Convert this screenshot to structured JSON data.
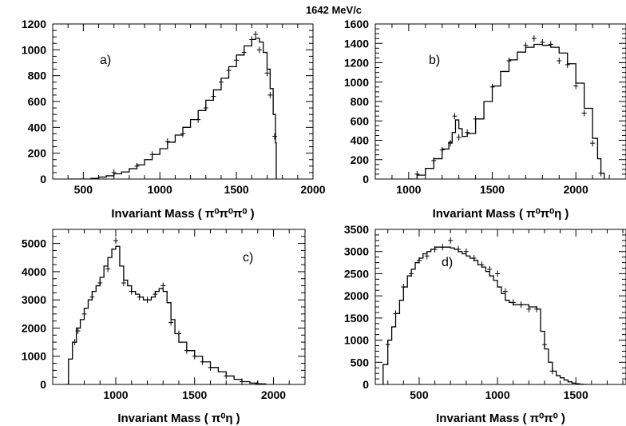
{
  "figure_title": "1642 MeV/c",
  "chart_data": [
    {
      "type": "area",
      "panel_label": "a)",
      "xlabel": "Invariant Mass ( π⁰π⁰π⁰ )",
      "ylabel": "",
      "xlim": [
        300,
        2000
      ],
      "ylim": [
        0,
        1200
      ],
      "xticks": [
        500,
        1000,
        1500,
        2000
      ],
      "yticks": [
        0,
        200,
        400,
        600,
        800,
        1000,
        1200
      ],
      "series": [
        {
          "style": "histogram",
          "x": [
            400,
            500,
            550,
            600,
            650,
            700,
            750,
            800,
            850,
            900,
            950,
            1000,
            1050,
            1100,
            1150,
            1200,
            1250,
            1300,
            1350,
            1400,
            1450,
            1500,
            1550,
            1600,
            1625,
            1650,
            1675,
            1700,
            1720,
            1740,
            1755,
            1760
          ],
          "values": [
            0,
            0,
            5,
            15,
            25,
            40,
            55,
            80,
            110,
            150,
            190,
            235,
            285,
            340,
            400,
            460,
            530,
            610,
            690,
            780,
            870,
            960,
            1030,
            1080,
            1090,
            1060,
            980,
            850,
            700,
            500,
            280,
            0
          ]
        },
        {
          "style": "points",
          "x": [
            700,
            850,
            950,
            1050,
            1150,
            1250,
            1300,
            1350,
            1400,
            1450,
            1500,
            1550,
            1600,
            1625,
            1650,
            1700,
            1720,
            1750
          ],
          "values": [
            50,
            100,
            190,
            290,
            350,
            460,
            550,
            640,
            750,
            840,
            920,
            980,
            1080,
            1120,
            1000,
            820,
            650,
            330
          ]
        }
      ]
    },
    {
      "type": "area",
      "panel_label": "b)",
      "xlabel": "Invariant Mass ( π⁰π⁰η )",
      "ylabel": "",
      "xlim": [
        800,
        2300
      ],
      "ylim": [
        0,
        1600
      ],
      "xticks": [
        1000,
        1500,
        2000
      ],
      "yticks": [
        0,
        200,
        400,
        600,
        800,
        1000,
        1200,
        1400,
        1600
      ],
      "series": [
        {
          "style": "histogram",
          "x": [
            1000,
            1050,
            1100,
            1150,
            1200,
            1240,
            1260,
            1280,
            1300,
            1320,
            1350,
            1400,
            1450,
            1500,
            1550,
            1600,
            1650,
            1700,
            1750,
            1800,
            1850,
            1900,
            1950,
            2000,
            2050,
            2100,
            2130,
            2150,
            2170
          ],
          "values": [
            0,
            40,
            110,
            210,
            310,
            380,
            480,
            610,
            520,
            440,
            470,
            620,
            800,
            960,
            1110,
            1230,
            1310,
            1360,
            1390,
            1380,
            1360,
            1300,
            1190,
            990,
            730,
            420,
            210,
            60,
            0
          ]
        },
        {
          "style": "points",
          "x": [
            1050,
            1150,
            1200,
            1250,
            1275,
            1300,
            1350,
            1400,
            1500,
            1600,
            1700,
            1750,
            1800,
            1850,
            1900,
            1950,
            2000,
            2050,
            2100,
            2150
          ],
          "values": [
            50,
            190,
            300,
            370,
            650,
            430,
            480,
            620,
            950,
            1220,
            1380,
            1450,
            1410,
            1390,
            1220,
            1180,
            960,
            680,
            370,
            60
          ]
        }
      ]
    },
    {
      "type": "area",
      "panel_label": "c)",
      "xlabel": "Invariant Mass ( π⁰η )",
      "ylabel": "",
      "xlim": [
        600,
        2200
      ],
      "ylim": [
        0,
        5500
      ],
      "xticks": [
        1000,
        1500,
        2000
      ],
      "yticks": [
        0,
        1000,
        2000,
        3000,
        4000,
        5000
      ],
      "series": [
        {
          "style": "histogram",
          "x": [
            680,
            700,
            725,
            750,
            775,
            800,
            825,
            850,
            875,
            900,
            925,
            950,
            975,
            1000,
            1025,
            1050,
            1075,
            1100,
            1125,
            1150,
            1175,
            1200,
            1225,
            1250,
            1275,
            1300,
            1325,
            1350,
            1375,
            1400,
            1450,
            1500,
            1550,
            1600,
            1650,
            1700,
            1750,
            1800,
            1850,
            1900,
            1950
          ],
          "values": [
            0,
            900,
            1500,
            2000,
            2300,
            2700,
            3000,
            3300,
            3500,
            3800,
            4200,
            4500,
            4800,
            4900,
            4200,
            3700,
            3500,
            3300,
            3200,
            3100,
            3000,
            3000,
            3100,
            3300,
            3400,
            3300,
            2900,
            2300,
            1800,
            1500,
            1200,
            1000,
            800,
            600,
            450,
            300,
            180,
            100,
            50,
            20,
            0
          ]
        },
        {
          "style": "points",
          "x": [
            740,
            760,
            800,
            850,
            900,
            950,
            1000,
            1050,
            1100,
            1150,
            1200,
            1250,
            1300,
            1350,
            1400,
            1450,
            1500,
            1550,
            1600,
            1700,
            1800,
            1900
          ],
          "values": [
            1500,
            1900,
            2500,
            3100,
            3600,
            4100,
            5100,
            3600,
            3300,
            3100,
            3000,
            3200,
            3500,
            2200,
            1800,
            1200,
            1000,
            800,
            600,
            300,
            100,
            20
          ]
        }
      ]
    },
    {
      "type": "area",
      "panel_label": "d)",
      "xlabel": "Invariant Mass ( π⁰π⁰ )",
      "ylabel": "",
      "xlim": [
        220,
        1820
      ],
      "ylim": [
        0,
        3500
      ],
      "xticks": [
        500,
        1000,
        1500
      ],
      "yticks": [
        0,
        500,
        1000,
        1500,
        2000,
        2500,
        3000,
        3500
      ],
      "series": [
        {
          "style": "histogram",
          "x": [
            270,
            300,
            325,
            350,
            375,
            400,
            425,
            450,
            475,
            500,
            525,
            550,
            575,
            600,
            625,
            650,
            675,
            700,
            725,
            750,
            775,
            800,
            825,
            850,
            875,
            900,
            925,
            950,
            975,
            1000,
            1025,
            1050,
            1075,
            1100,
            1150,
            1200,
            1250,
            1275,
            1300,
            1325,
            1350,
            1375,
            1400,
            1425,
            1450,
            1475,
            1500,
            1525,
            1550,
            1575
          ],
          "values": [
            450,
            1000,
            1300,
            1600,
            1900,
            2200,
            2450,
            2600,
            2750,
            2850,
            2950,
            3000,
            3050,
            3100,
            3100,
            3100,
            3100,
            3080,
            3050,
            3000,
            2950,
            2900,
            2850,
            2800,
            2700,
            2650,
            2550,
            2450,
            2350,
            2200,
            2050,
            1900,
            1850,
            1800,
            1800,
            1750,
            1700,
            1200,
            800,
            500,
            300,
            200,
            150,
            100,
            60,
            30,
            15,
            5,
            0,
            0
          ]
        },
        {
          "style": "points",
          "x": [
            300,
            350,
            400,
            450,
            500,
            550,
            600,
            650,
            700,
            750,
            800,
            850,
            900,
            950,
            1000,
            1050,
            1100,
            1150,
            1200,
            1250,
            1300,
            1350
          ],
          "values": [
            900,
            1600,
            2200,
            2500,
            2800,
            2900,
            3050,
            3100,
            3250,
            3050,
            3000,
            2850,
            2700,
            2600,
            2500,
            2100,
            1850,
            1800,
            1700,
            1700,
            900,
            300
          ]
        }
      ]
    }
  ]
}
